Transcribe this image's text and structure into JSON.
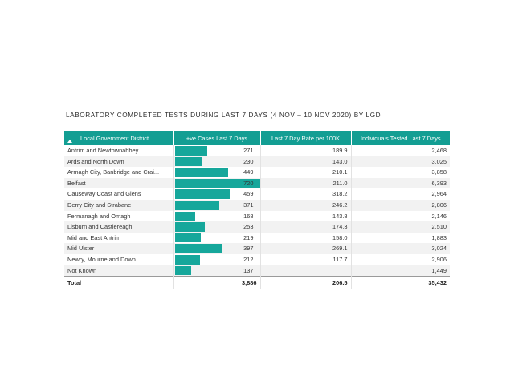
{
  "title": "LABORATORY COMPLETED TESTS DURING LAST 7 DAYS (4 NOV – 10 NOV 2020) BY LGD",
  "columns": {
    "district": "Local Government District",
    "cases": "+ve Cases Last 7 Days",
    "rate": "Last 7 Day Rate per 100K",
    "tested": "Individuals Tested Last 7 Days"
  },
  "bar_color": "#16a79b",
  "header_color": "#139e93",
  "bar_max": 720,
  "rows": [
    {
      "district": "Antrim and Newtownabbey",
      "cases": 271,
      "cases_label": "271",
      "rate": "189.9",
      "tested": "2,468"
    },
    {
      "district": "Ards and North Down",
      "cases": 230,
      "cases_label": "230",
      "rate": "143.0",
      "tested": "3,025"
    },
    {
      "district": "Armagh City, Banbridge and Crai...",
      "cases": 449,
      "cases_label": "449",
      "rate": "210.1",
      "tested": "3,858"
    },
    {
      "district": "Belfast",
      "cases": 720,
      "cases_label": "720",
      "rate": "211.0",
      "tested": "6,393"
    },
    {
      "district": "Causeway Coast and Glens",
      "cases": 459,
      "cases_label": "459",
      "rate": "318.2",
      "tested": "2,964"
    },
    {
      "district": "Derry City and Strabane",
      "cases": 371,
      "cases_label": "371",
      "rate": "246.2",
      "tested": "2,806"
    },
    {
      "district": "Fermanagh and Omagh",
      "cases": 168,
      "cases_label": "168",
      "rate": "143.8",
      "tested": "2,146"
    },
    {
      "district": "Lisburn and Castlereagh",
      "cases": 253,
      "cases_label": "253",
      "rate": "174.3",
      "tested": "2,510"
    },
    {
      "district": "Mid and East Antrim",
      "cases": 219,
      "cases_label": "219",
      "rate": "158.0",
      "tested": "1,883"
    },
    {
      "district": "Mid Ulster",
      "cases": 397,
      "cases_label": "397",
      "rate": "269.1",
      "tested": "3,024"
    },
    {
      "district": "Newry, Mourne and Down",
      "cases": 212,
      "cases_label": "212",
      "rate": "117.7",
      "tested": "2,906"
    },
    {
      "district": "Not Known",
      "cases": 137,
      "cases_label": "137",
      "rate": "",
      "tested": "1,449"
    }
  ],
  "total": {
    "label": "Total",
    "cases": "3,886",
    "rate": "206.5",
    "tested": "35,432"
  }
}
